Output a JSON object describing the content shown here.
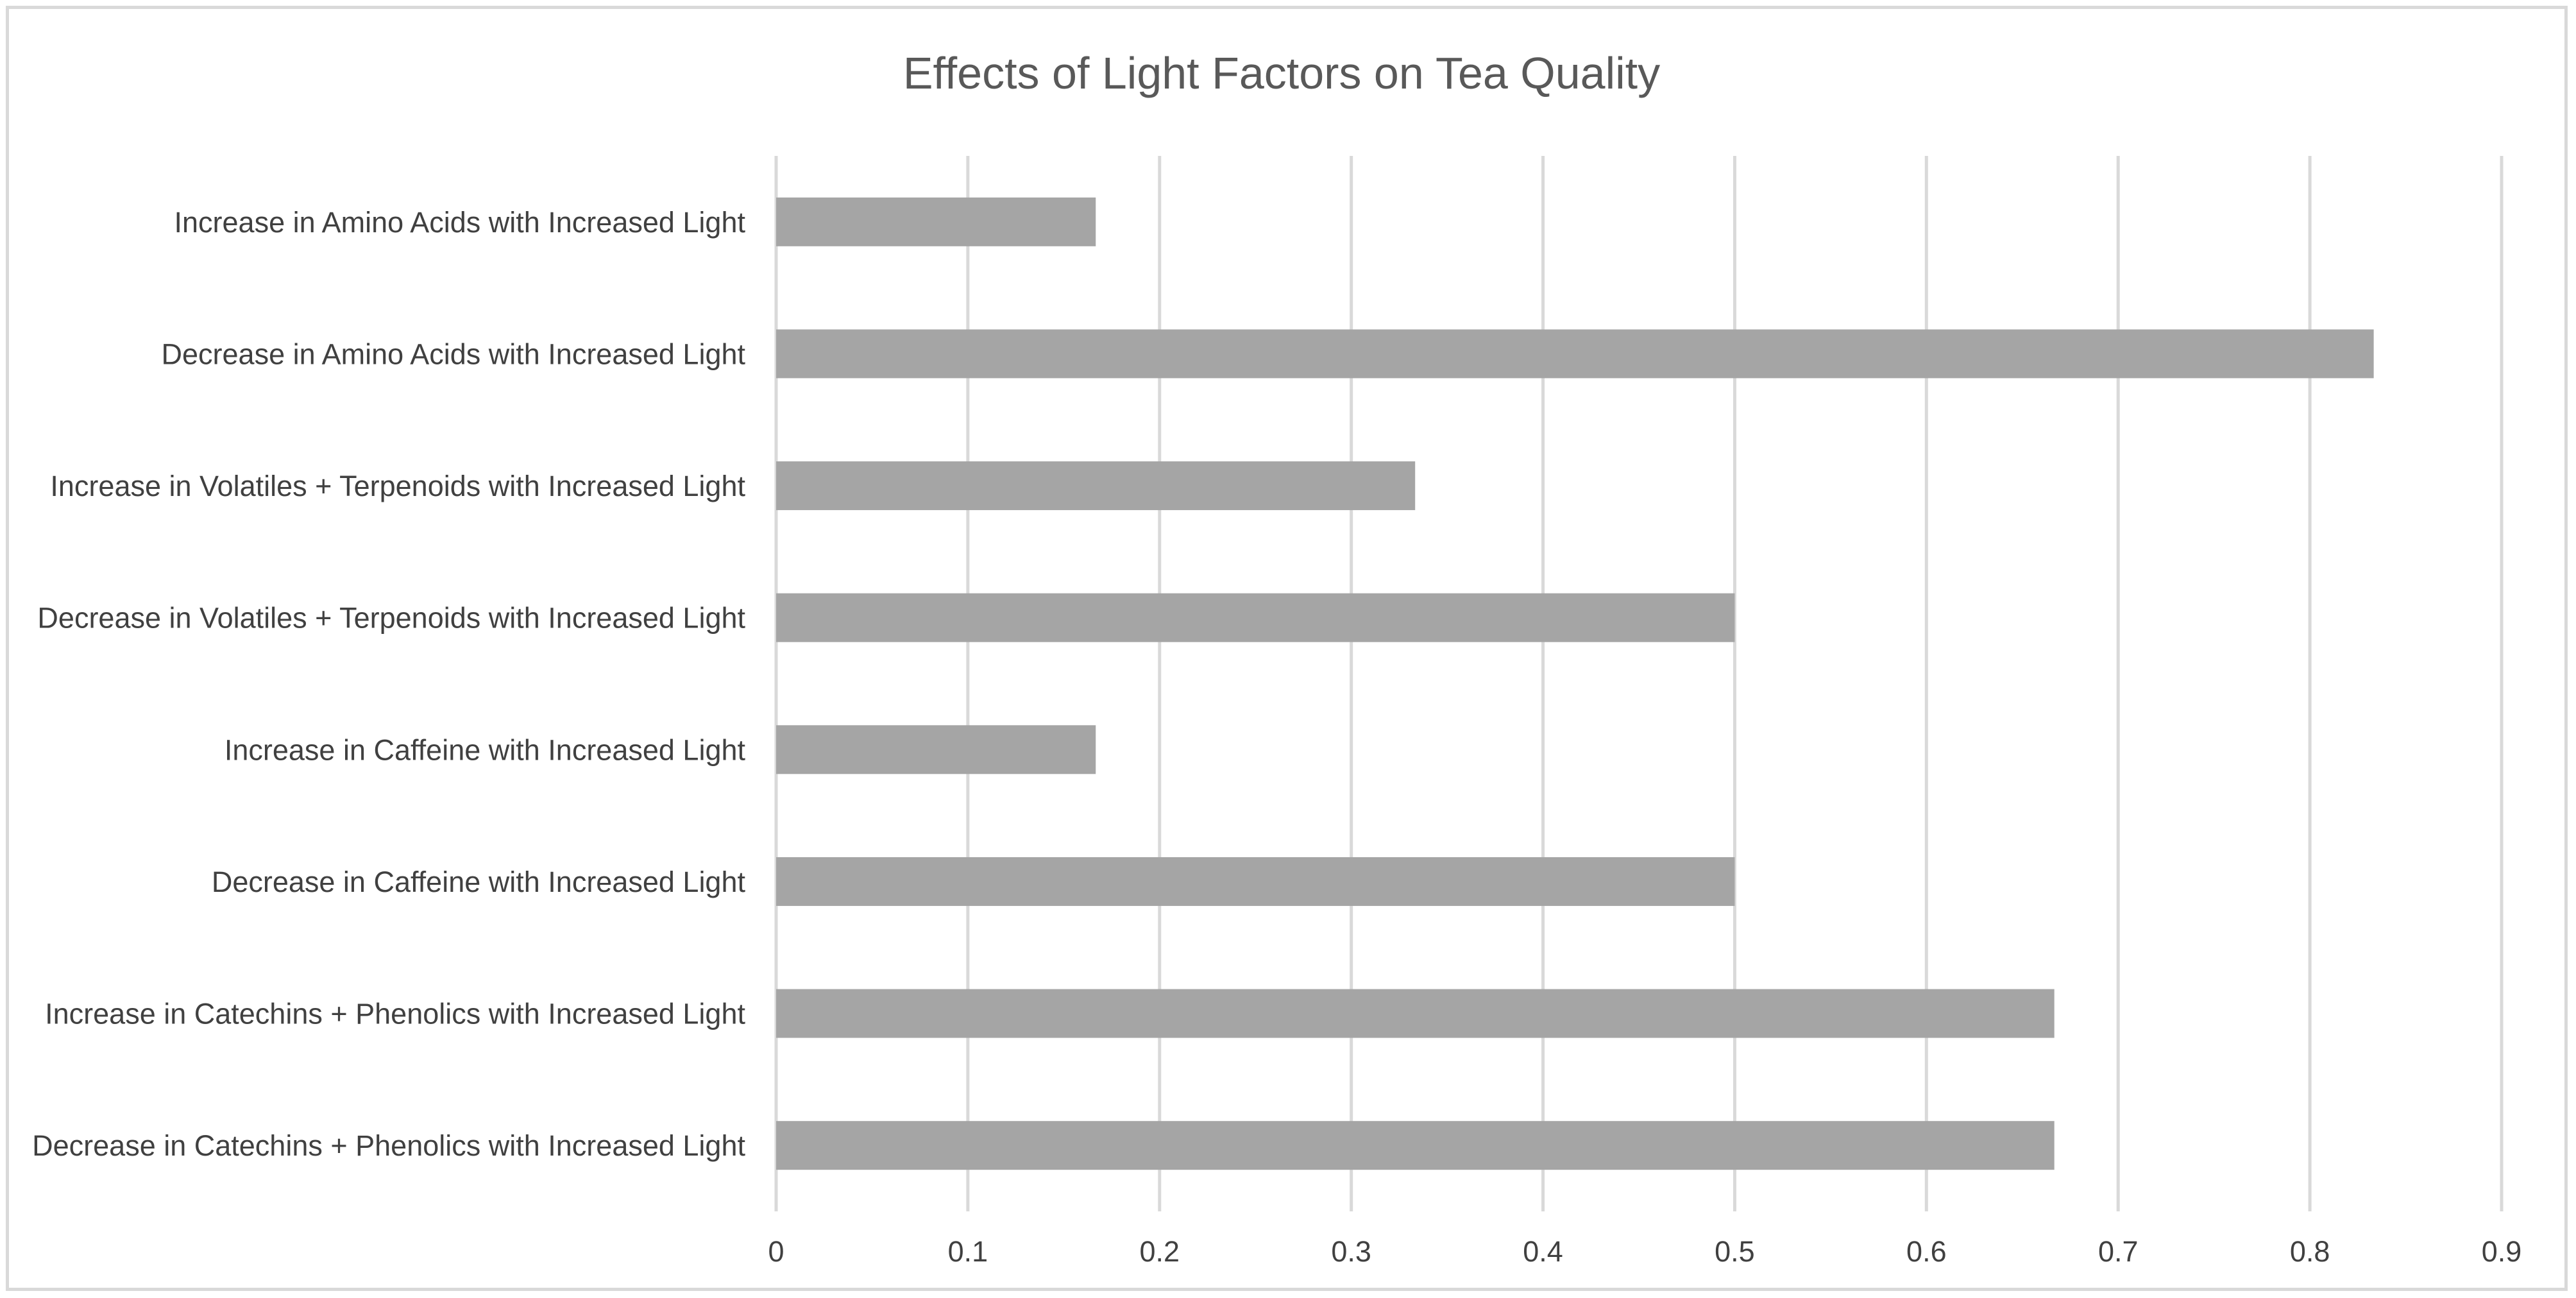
{
  "chart_data": {
    "type": "bar",
    "orientation": "horizontal",
    "title": "Effects of Light Factors on Tea Quality",
    "xlabel": "",
    "ylabel": "",
    "categories": [
      "Increase in Amino Acids with Increased Light",
      "Decrease in Amino Acids with Increased Light",
      "Increase in Volatiles + Terpenoids with Increased Light",
      "Decrease in Volatiles + Terpenoids with Increased Light",
      "Increase in Caffeine with Increased Light",
      "Decrease in Caffeine with Increased Light",
      "Increase in Catechins + Phenolics with Increased Light",
      "Decrease in Catechins + Phenolics with Increased Light"
    ],
    "values": [
      0.1667,
      0.8333,
      0.3333,
      0.5,
      0.1667,
      0.5,
      0.6667,
      0.6667
    ],
    "xlim": [
      0,
      0.9
    ],
    "ticks": [
      "0",
      "0.1",
      "0.2",
      "0.3",
      "0.4",
      "0.5",
      "0.6",
      "0.7",
      "0.8",
      "0.9"
    ],
    "grid": true,
    "legend": "none",
    "colors": {
      "bar": "#a5a5a5",
      "grid": "#d9d9d9",
      "text": "#404040",
      "title": "#595959"
    }
  }
}
